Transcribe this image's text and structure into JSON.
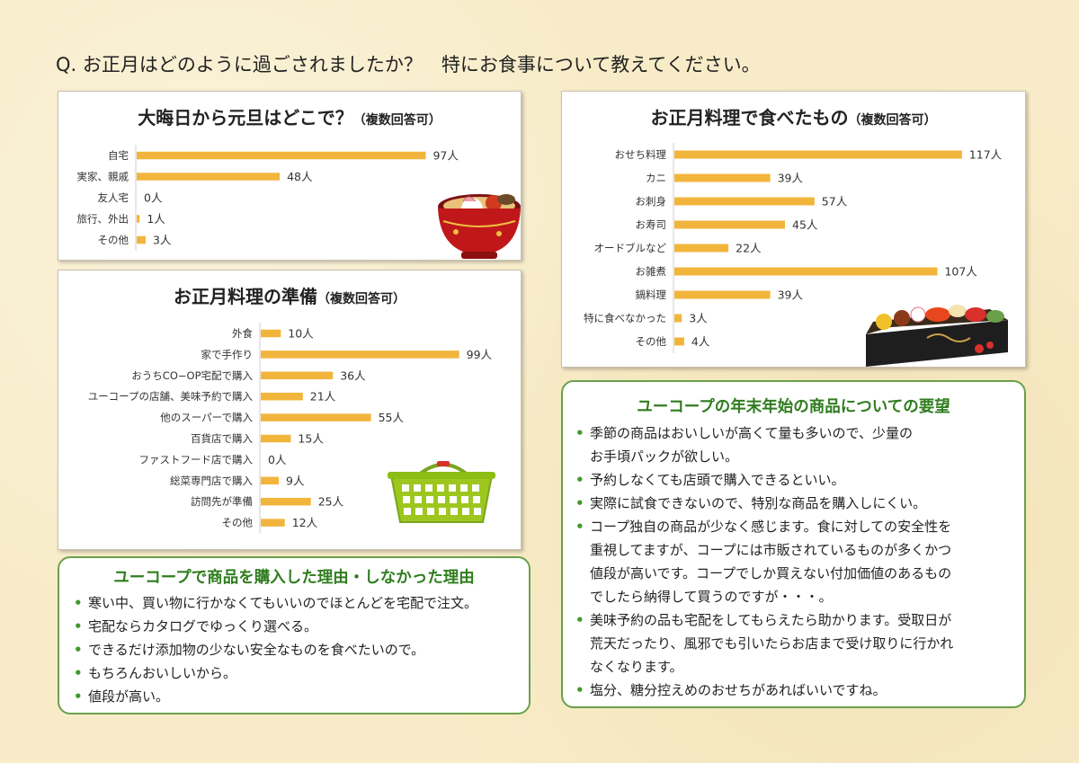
{
  "question": "Q.  お正月はどのように過ごされましたか？　特にお食事について教えてください。",
  "colors": {
    "bar": "#f2b53c",
    "box_border": "#6aa04a",
    "box_title": "#2f7d1e",
    "bullet": "#3f9a2a"
  },
  "icons": [
    "ozoni-bowl-illustration",
    "shopping-basket-illustration",
    "osechi-box-illustration"
  ],
  "chart_data": [
    {
      "type": "bar",
      "orientation": "horizontal",
      "title": "大晦日から元旦はどこで？",
      "note": "（複数回答可）",
      "categories": [
        "自宅",
        "実家、親戚",
        "友人宅",
        "旅行、外出",
        "その他"
      ],
      "values": [
        97,
        48,
        0,
        1,
        3
      ],
      "value_labels": [
        "97人",
        "48人",
        "0人",
        "1人",
        "3人"
      ],
      "unit": "人",
      "grid": false,
      "xlim": [
        0,
        105
      ]
    },
    {
      "type": "bar",
      "orientation": "horizontal",
      "title": "お正月料理の準備",
      "note": "（複数回答可）",
      "categories": [
        "外食",
        "家で手作り",
        "おうちCO−OP宅配で購入",
        "ユーコープの店舗、美味予約で購入",
        "他のスーパーで購入",
        "百貨店で購入",
        "ファストフード店で購入",
        "総菜専門店で購入",
        "訪問先が準備",
        "その他"
      ],
      "values": [
        10,
        99,
        36,
        21,
        55,
        15,
        0,
        9,
        25,
        12
      ],
      "value_labels": [
        "10人",
        "99人",
        "36人",
        "21人",
        "55人",
        "15人",
        "0人",
        "9人",
        "25人",
        "12人"
      ],
      "unit": "人",
      "grid": false,
      "xlim": [
        0,
        105
      ]
    },
    {
      "type": "bar",
      "orientation": "horizontal",
      "title": "お正月料理で食べたもの",
      "note": "（複数回答可）",
      "categories": [
        "おせち料理",
        "カニ",
        "お刺身",
        "お寿司",
        "オードブルなど",
        "お雑煮",
        "鍋料理",
        "特に食べなかった",
        "その他"
      ],
      "values": [
        117,
        39,
        57,
        45,
        22,
        107,
        39,
        3,
        4
      ],
      "value_labels": [
        "117人",
        "39人",
        "57人",
        "45人",
        "22人",
        "107人",
        "39人",
        "3人",
        "4人"
      ],
      "unit": "人",
      "grid": false,
      "xlim": [
        0,
        120
      ]
    }
  ],
  "reasons_box": {
    "title": "ユーコープで商品を購入した理由・しなかった理由",
    "items": [
      "寒い中、買い物に行かなくてもいいのでほとんどを宅配で注文。",
      "宅配ならカタログでゆっくり選べる。",
      "できるだけ添加物の少ない安全なものを食べたいので。",
      "もちろんおいしいから。",
      "値段が高い。"
    ]
  },
  "requests_box": {
    "title": "ユーコープの年末年始の商品についての要望",
    "items": [
      [
        "季節の商品はおいしいが高くて量も多いので、少量の",
        "お手頃パックが欲しい。"
      ],
      [
        "予約しなくても店頭で購入できるといい。"
      ],
      [
        "実際に試食できないので、特別な商品を購入しにくい。"
      ],
      [
        "コープ独自の商品が少なく感じます。食に対しての安全性を",
        "重視してますが、コープには市販されているものが多くかつ",
        "値段が高いです。コープでしか買えない付加価値のあるもの",
        "でしたら納得して買うのですが・・・。"
      ],
      [
        "美味予約の品も宅配をしてもらえたら助かります。受取日が",
        "荒天だったり、風邪でも引いたらお店まで受け取りに行かれ",
        "なくなります。"
      ],
      [
        "塩分、糖分控えめのおせちがあればいいですね。"
      ]
    ]
  }
}
